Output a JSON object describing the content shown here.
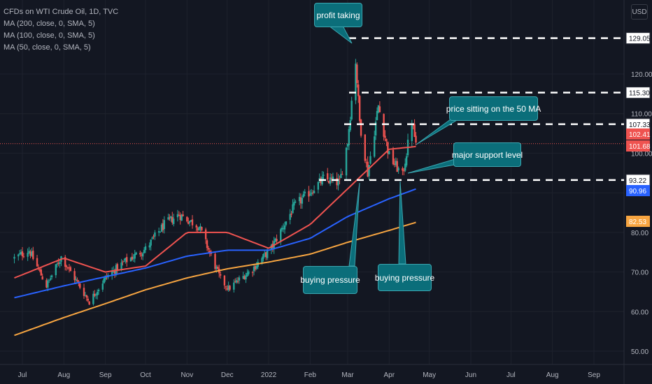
{
  "legend": {
    "title": "CFDs on WTI Crude Oil, 1D, TVC",
    "ma200": "MA (200, close, 0, SMA, 5)",
    "ma100": "MA (100, close, 0, SMA, 5)",
    "ma50": "MA (50, close, 0, SMA, 5)"
  },
  "currency_button": "USD",
  "annotations": {
    "profit_taking": "profit taking",
    "price_50ma": "price sitting on the 50 MA",
    "major_support": "major support level",
    "buying_pressure_1": "buying pressure",
    "buying_pressure_2": "buying pressure"
  },
  "colors": {
    "background": "#131722",
    "up": "#26a69a",
    "down": "#ef5350",
    "ma50": "#ef5350",
    "ma100": "#2962ff",
    "ma200": "#f7a541",
    "callout": "#0b6e7a"
  },
  "chart_data": {
    "type": "candlestick",
    "y_ticks": [
      "50.00",
      "60.00",
      "70.00",
      "80.00",
      "90.00",
      "100.00",
      "110.00",
      "120.00"
    ],
    "x_ticks": [
      "Jul",
      "Aug",
      "Sep",
      "Oct",
      "Nov",
      "Dec",
      "2022",
      "Feb",
      "Mar",
      "Apr",
      "May",
      "Jun",
      "Jul",
      "Aug",
      "Sep"
    ],
    "ylim": [
      46,
      140
    ],
    "levels": [
      {
        "label": "129.05",
        "value": 129.05
      },
      {
        "label": "115.30",
        "value": 115.3
      },
      {
        "label": "107.33",
        "value": 107.33
      },
      {
        "label": "93.22",
        "value": 93.22
      }
    ],
    "price_badges": [
      {
        "label": "102.41",
        "value": 102.41,
        "color": "#ef5350"
      },
      {
        "label": "101.68",
        "value": 101.68,
        "color": "#ef5350"
      },
      {
        "label": "90.96",
        "value": 90.96,
        "color": "#2962ff"
      },
      {
        "label": "82.53",
        "value": 82.53,
        "color": "#f7a541"
      }
    ],
    "close_keypoints": [
      [
        "2021-06-25",
        73.5
      ],
      [
        "2021-07-06",
        75.5
      ],
      [
        "2021-07-19",
        66.5
      ],
      [
        "2021-07-30",
        73.8
      ],
      [
        "2021-08-20",
        62.5
      ],
      [
        "2021-09-01",
        68.5
      ],
      [
        "2021-09-15",
        72.5
      ],
      [
        "2021-10-01",
        75.8
      ],
      [
        "2021-10-15",
        82.0
      ],
      [
        "2021-10-26",
        84.5
      ],
      [
        "2021-11-10",
        81.5
      ],
      [
        "2021-11-26",
        68.2
      ],
      [
        "2021-12-02",
        65.8
      ],
      [
        "2021-12-20",
        70.8
      ],
      [
        "2022-01-03",
        76.0
      ],
      [
        "2022-01-20",
        86.5
      ],
      [
        "2022-02-11",
        93.5
      ],
      [
        "2022-02-23",
        92.5
      ],
      [
        "2022-03-01",
        103.0
      ],
      [
        "2022-03-07",
        123.5
      ],
      [
        "2022-03-10",
        108.0
      ],
      [
        "2022-03-16",
        95.0
      ],
      [
        "2022-03-24",
        112.0
      ],
      [
        "2022-04-01",
        99.3
      ],
      [
        "2022-04-11",
        94.3
      ],
      [
        "2022-04-18",
        108.0
      ],
      [
        "2022-04-21",
        102.4
      ]
    ],
    "ma_keypoints": {
      "ma50": [
        [
          "2021-06-25",
          68.5
        ],
        [
          "2021-08-01",
          73.5
        ],
        [
          "2021-09-01",
          70.0
        ],
        [
          "2021-10-01",
          71.5
        ],
        [
          "2021-11-01",
          80.0
        ],
        [
          "2021-12-01",
          80.0
        ],
        [
          "2022-01-01",
          76.0
        ],
        [
          "2022-02-01",
          82.0
        ],
        [
          "2022-03-01",
          91.0
        ],
        [
          "2022-04-01",
          101.0
        ],
        [
          "2022-04-21",
          101.68
        ]
      ],
      "ma100": [
        [
          "2021-06-25",
          63.5
        ],
        [
          "2021-08-01",
          66.5
        ],
        [
          "2021-09-01",
          68.8
        ],
        [
          "2021-10-01",
          71.0
        ],
        [
          "2021-11-01",
          74.0
        ],
        [
          "2021-12-01",
          75.5
        ],
        [
          "2022-01-01",
          75.5
        ],
        [
          "2022-02-01",
          78.5
        ],
        [
          "2022-03-01",
          84.0
        ],
        [
          "2022-04-01",
          88.5
        ],
        [
          "2022-04-21",
          90.96
        ]
      ],
      "ma200": [
        [
          "2021-06-25",
          54.0
        ],
        [
          "2021-08-01",
          58.5
        ],
        [
          "2021-09-01",
          62.0
        ],
        [
          "2021-10-01",
          65.5
        ],
        [
          "2021-11-01",
          68.5
        ],
        [
          "2021-12-01",
          70.8
        ],
        [
          "2022-01-01",
          72.5
        ],
        [
          "2022-02-01",
          74.5
        ],
        [
          "2022-03-01",
          77.5
        ],
        [
          "2022-04-01",
          80.5
        ],
        [
          "2022-04-21",
          82.53
        ]
      ]
    }
  }
}
